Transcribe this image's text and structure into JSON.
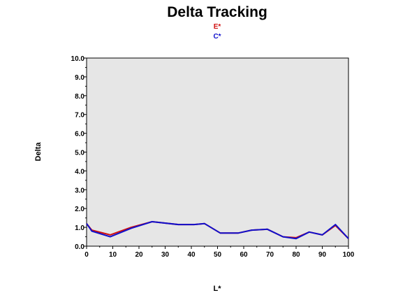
{
  "chart_data": {
    "type": "line",
    "title": "Delta Tracking",
    "xlabel": "L*",
    "ylabel": "Delta",
    "xlim": [
      0,
      100
    ],
    "ylim": [
      0,
      10
    ],
    "grid": false,
    "legend_position": "top-center",
    "x_ticks": [
      "0",
      "10",
      "20",
      "30",
      "40",
      "50",
      "60",
      "70",
      "80",
      "90",
      "100"
    ],
    "y_ticks": [
      "0.0",
      "1.0",
      "2.0",
      "3.0",
      "4.0",
      "5.0",
      "6.0",
      "7.0",
      "8.0",
      "9.0",
      "10.0"
    ],
    "x": [
      0,
      2,
      9,
      17,
      25,
      35,
      41,
      45,
      51,
      58,
      63,
      69,
      75,
      80,
      85,
      90,
      95,
      100
    ],
    "series": [
      {
        "name": "E*",
        "color": "#d01010",
        "values": [
          1.2,
          0.85,
          0.6,
          1.0,
          1.3,
          1.15,
          1.15,
          1.2,
          0.7,
          0.7,
          0.85,
          0.9,
          0.5,
          0.45,
          0.75,
          0.6,
          1.1,
          0.4
        ]
      },
      {
        "name": "C*",
        "color": "#1010cc",
        "values": [
          1.2,
          0.8,
          0.5,
          0.95,
          1.3,
          1.15,
          1.15,
          1.2,
          0.7,
          0.7,
          0.85,
          0.9,
          0.5,
          0.4,
          0.75,
          0.6,
          1.15,
          0.4
        ]
      }
    ],
    "plot_background": "#e6e6e6"
  }
}
